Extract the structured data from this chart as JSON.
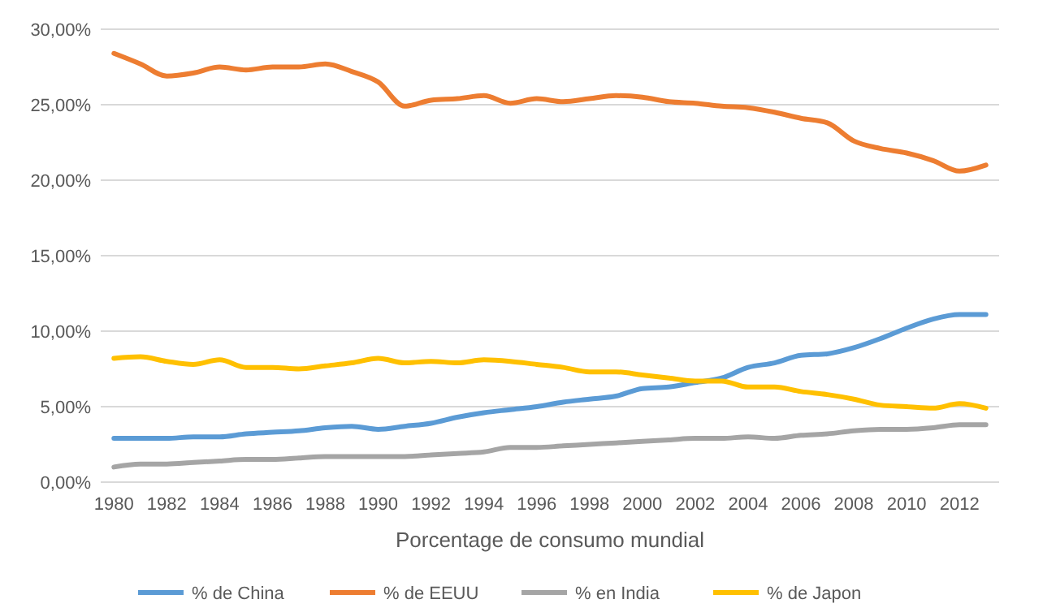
{
  "chart_data": {
    "type": "line",
    "xlabel": "Porcentage de consumo mundial",
    "x": [
      1980,
      1981,
      1982,
      1983,
      1984,
      1985,
      1986,
      1987,
      1988,
      1989,
      1990,
      1991,
      1992,
      1993,
      1994,
      1995,
      1996,
      1997,
      1998,
      1999,
      2000,
      2001,
      2002,
      2003,
      2004,
      2005,
      2006,
      2007,
      2008,
      2009,
      2010,
      2011,
      2012,
      2013
    ],
    "series": [
      {
        "name": "% de China",
        "color": "#5b9bd5",
        "values": [
          2.9,
          2.9,
          2.9,
          3.0,
          3.0,
          3.2,
          3.3,
          3.4,
          3.6,
          3.7,
          3.5,
          3.7,
          3.9,
          4.3,
          4.6,
          4.8,
          5.0,
          5.3,
          5.5,
          5.7,
          6.2,
          6.3,
          6.6,
          6.9,
          7.6,
          7.9,
          8.4,
          8.5,
          8.9,
          9.5,
          10.2,
          10.8,
          11.1,
          11.1
        ]
      },
      {
        "name": "% de EEUU",
        "color": "#ed7d31",
        "values": [
          28.4,
          27.7,
          26.9,
          27.1,
          27.5,
          27.3,
          27.5,
          27.5,
          27.7,
          27.2,
          26.5,
          24.9,
          25.3,
          25.4,
          25.6,
          25.1,
          25.4,
          25.2,
          25.4,
          25.6,
          25.5,
          25.2,
          25.1,
          24.9,
          24.8,
          24.5,
          24.1,
          23.8,
          22.6,
          22.1,
          21.8,
          21.3,
          20.6,
          21.0
        ]
      },
      {
        "name": "% en India",
        "color": "#a5a5a5",
        "values": [
          1.0,
          1.2,
          1.2,
          1.3,
          1.4,
          1.5,
          1.5,
          1.6,
          1.7,
          1.7,
          1.7,
          1.7,
          1.8,
          1.9,
          2.0,
          2.3,
          2.3,
          2.4,
          2.5,
          2.6,
          2.7,
          2.8,
          2.9,
          2.9,
          3.0,
          2.9,
          3.1,
          3.2,
          3.4,
          3.5,
          3.5,
          3.6,
          3.8,
          3.8
        ]
      },
      {
        "name": "% de Japon",
        "color": "#ffc000",
        "values": [
          8.2,
          8.3,
          8.0,
          7.8,
          8.1,
          7.6,
          7.6,
          7.5,
          7.7,
          7.9,
          8.2,
          7.9,
          8.0,
          7.9,
          8.1,
          8.0,
          7.8,
          7.6,
          7.3,
          7.3,
          7.1,
          6.9,
          6.7,
          6.7,
          6.3,
          6.3,
          6.0,
          5.8,
          5.5,
          5.1,
          5.0,
          4.9,
          5.2,
          4.9
        ]
      }
    ],
    "xlim": [
      1979.5,
      2013.5
    ],
    "xticks": [
      1980,
      1982,
      1984,
      1986,
      1988,
      1990,
      1992,
      1994,
      1996,
      1998,
      2000,
      2002,
      2004,
      2006,
      2008,
      2010,
      2012
    ],
    "ylim": [
      0,
      30
    ],
    "yticks": [
      {
        "value": 0,
        "label": "0,00%"
      },
      {
        "value": 5,
        "label": "5,00%"
      },
      {
        "value": 10,
        "label": "10,00%"
      },
      {
        "value": 15,
        "label": "15,00%"
      },
      {
        "value": 20,
        "label": "20,00%"
      },
      {
        "value": 25,
        "label": "25,00%"
      },
      {
        "value": 30,
        "label": "30,00%"
      }
    ],
    "grid": "y",
    "legend": "bottom",
    "marker": "none",
    "line_style": "solid"
  }
}
